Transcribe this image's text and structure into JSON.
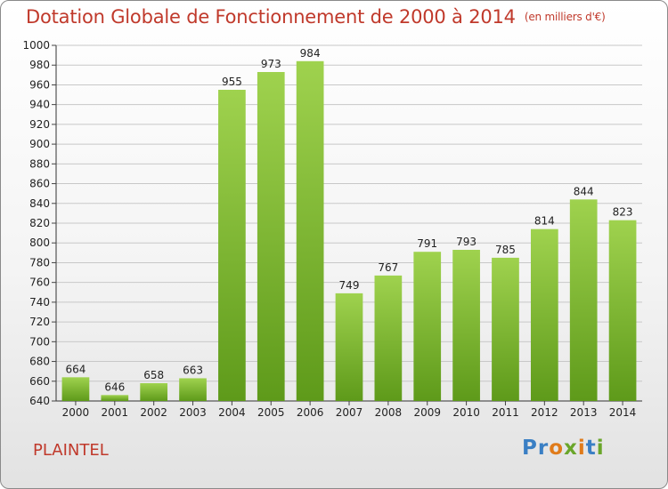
{
  "chart_data": {
    "type": "bar",
    "title": "Dotation Globale de Fonctionnement de 2000 à 2014",
    "subtitle": "(en milliers d'€)",
    "categories": [
      "2000",
      "2001",
      "2002",
      "2003",
      "2004",
      "2005",
      "2006",
      "2007",
      "2008",
      "2009",
      "2010",
      "2011",
      "2012",
      "2013",
      "2014"
    ],
    "values": [
      664,
      646,
      658,
      663,
      955,
      973,
      984,
      749,
      767,
      791,
      793,
      785,
      814,
      844,
      823
    ],
    "xlabel": "",
    "ylabel": "",
    "ylim": [
      640,
      1000
    ],
    "yticks": [
      640,
      660,
      680,
      700,
      720,
      740,
      760,
      780,
      800,
      820,
      840,
      860,
      880,
      900,
      920,
      940,
      960,
      980,
      1000
    ],
    "grid": "horizontal",
    "bar_color": "#7cb82f"
  },
  "commune": "PLAINTEL",
  "logo": {
    "text": "Proxiti"
  }
}
